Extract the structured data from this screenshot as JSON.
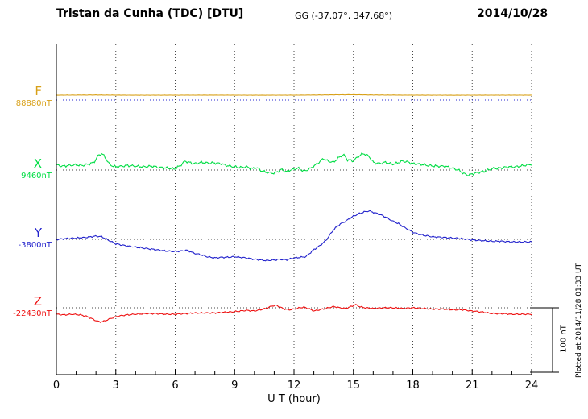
{
  "header": {
    "title": "Tristan da Cunha (TDC)  [DTU]",
    "coords": "GG (-37.07°, 347.68°)",
    "date": "2014/10/28"
  },
  "axis": {
    "xlabel": "U T (hour)"
  },
  "scale_bar": {
    "label": "100 nT",
    "nT": 100
  },
  "plotted_note": "Plotted at 2014/11/28 01:33 UT",
  "chart_data": {
    "type": "line",
    "title": "Tristan da Cunha (TDC) [DTU] magnetogram 2014/10/28",
    "xlabel": "U T (hour)",
    "x_range": [
      0,
      24
    ],
    "x_ticks": [
      0,
      3,
      6,
      9,
      12,
      15,
      18,
      21,
      24
    ],
    "scale_nT_per_div": 100,
    "grid": "vertical-dotted-every-3h",
    "series": [
      {
        "name": "F",
        "label": "F",
        "baseline_label": "88880nT",
        "baseline_nT": 88880,
        "color": "#d8a018",
        "baseline_color": "#2a2ad0",
        "points": [
          [
            0,
            7.5
          ],
          [
            2,
            7.8
          ],
          [
            4,
            7.4
          ],
          [
            6,
            7.5
          ],
          [
            8,
            7.6
          ],
          [
            10,
            7.4
          ],
          [
            12,
            7.5
          ],
          [
            14,
            8
          ],
          [
            15,
            8.2
          ],
          [
            16,
            7.8
          ],
          [
            18,
            7.5
          ],
          [
            20,
            7.4
          ],
          [
            22,
            7.5
          ],
          [
            24,
            7.5
          ]
        ]
      },
      {
        "name": "X",
        "label": "X",
        "baseline_label": "9460nT",
        "baseline_nT": 9460,
        "color": "#00dd44",
        "baseline_color": "#444444",
        "points": [
          [
            0,
            8
          ],
          [
            0.3,
            6
          ],
          [
            0.6,
            7
          ],
          [
            1,
            8
          ],
          [
            1.3,
            7
          ],
          [
            1.6,
            9
          ],
          [
            1.9,
            12
          ],
          [
            2.1,
            22
          ],
          [
            2.3,
            26
          ],
          [
            2.5,
            18
          ],
          [
            2.7,
            8
          ],
          [
            3,
            5
          ],
          [
            3.3,
            6
          ],
          [
            3.6,
            7
          ],
          [
            4,
            6
          ],
          [
            4.4,
            5
          ],
          [
            4.8,
            6
          ],
          [
            5.2,
            4
          ],
          [
            5.6,
            3
          ],
          [
            6,
            2
          ],
          [
            6.3,
            8
          ],
          [
            6.5,
            14
          ],
          [
            6.8,
            11
          ],
          [
            7,
            10
          ],
          [
            7.3,
            12
          ],
          [
            7.6,
            11
          ],
          [
            8,
            11
          ],
          [
            8.3,
            10
          ],
          [
            8.6,
            7
          ],
          [
            9,
            5
          ],
          [
            9.3,
            4
          ],
          [
            9.6,
            5
          ],
          [
            9.9,
            2
          ],
          [
            10.1,
            4
          ],
          [
            10.4,
            -2
          ],
          [
            10.7,
            -4
          ],
          [
            11,
            -5
          ],
          [
            11.2,
            -2
          ],
          [
            11.4,
            1
          ],
          [
            11.6,
            -3
          ],
          [
            11.8,
            0
          ],
          [
            12,
            1
          ],
          [
            12.2,
            3
          ],
          [
            12.5,
            -2
          ],
          [
            12.8,
            2
          ],
          [
            13,
            6
          ],
          [
            13.3,
            13
          ],
          [
            13.5,
            18
          ],
          [
            13.7,
            14
          ],
          [
            14,
            12
          ],
          [
            14.2,
            18
          ],
          [
            14.5,
            24
          ],
          [
            14.7,
            16
          ],
          [
            15,
            14
          ],
          [
            15.2,
            20
          ],
          [
            15.5,
            26
          ],
          [
            15.8,
            21
          ],
          [
            16,
            12
          ],
          [
            16.3,
            10
          ],
          [
            16.6,
            12
          ],
          [
            17,
            9
          ],
          [
            17.3,
            12
          ],
          [
            17.5,
            14
          ],
          [
            17.8,
            12
          ],
          [
            18,
            10
          ],
          [
            18.4,
            9
          ],
          [
            18.8,
            7
          ],
          [
            19.2,
            6
          ],
          [
            19.6,
            6
          ],
          [
            20,
            3
          ],
          [
            20.3,
            0
          ],
          [
            20.6,
            -6
          ],
          [
            20.8,
            -8
          ],
          [
            21,
            -6
          ],
          [
            21.3,
            -4
          ],
          [
            21.6,
            -2
          ],
          [
            22,
            2
          ],
          [
            22.4,
            3
          ],
          [
            22.8,
            5
          ],
          [
            23.2,
            5
          ],
          [
            23.6,
            7
          ],
          [
            24,
            9
          ]
        ]
      },
      {
        "name": "Y",
        "label": "Y",
        "baseline_label": "-3800nT",
        "baseline_nT": -3800,
        "color": "#2222cc",
        "baseline_color": "#444444",
        "points": [
          [
            0,
            0
          ],
          [
            0.5,
            1
          ],
          [
            1,
            2
          ],
          [
            1.5,
            3
          ],
          [
            2,
            5
          ],
          [
            2.3,
            4
          ],
          [
            2.6,
            -1
          ],
          [
            3,
            -7
          ],
          [
            3.5,
            -10
          ],
          [
            4,
            -12
          ],
          [
            4.5,
            -14
          ],
          [
            5,
            -16
          ],
          [
            5.5,
            -18
          ],
          [
            6,
            -19
          ],
          [
            6.3,
            -18
          ],
          [
            6.6,
            -17
          ],
          [
            7,
            -22
          ],
          [
            7.3,
            -24
          ],
          [
            7.6,
            -27
          ],
          [
            8,
            -29
          ],
          [
            8.3,
            -28
          ],
          [
            8.6,
            -28
          ],
          [
            9,
            -27
          ],
          [
            9.3,
            -28
          ],
          [
            9.6,
            -29
          ],
          [
            10,
            -31
          ],
          [
            10.3,
            -32
          ],
          [
            10.6,
            -33
          ],
          [
            11,
            -32
          ],
          [
            11.3,
            -31
          ],
          [
            11.6,
            -32
          ],
          [
            12,
            -29
          ],
          [
            12.3,
            -28
          ],
          [
            12.6,
            -27
          ],
          [
            13,
            -16
          ],
          [
            13.3,
            -10
          ],
          [
            13.6,
            -2
          ],
          [
            14,
            15
          ],
          [
            14.3,
            23
          ],
          [
            14.6,
            28
          ],
          [
            15,
            36
          ],
          [
            15.3,
            40
          ],
          [
            15.6,
            43
          ],
          [
            15.8,
            44
          ],
          [
            16,
            42
          ],
          [
            16.3,
            39
          ],
          [
            16.6,
            35
          ],
          [
            17,
            28
          ],
          [
            17.3,
            24
          ],
          [
            17.6,
            18
          ],
          [
            18,
            11
          ],
          [
            18.3,
            8
          ],
          [
            18.6,
            6
          ],
          [
            19,
            4
          ],
          [
            19.5,
            3
          ],
          [
            20,
            2
          ],
          [
            20.5,
            1
          ],
          [
            21,
            -1
          ],
          [
            21.5,
            -2
          ],
          [
            22,
            -3
          ],
          [
            22.5,
            -3
          ],
          [
            23,
            -4
          ],
          [
            23.5,
            -4
          ],
          [
            24,
            -4
          ]
        ]
      },
      {
        "name": "Z",
        "label": "Z",
        "baseline_label": "-22430nT",
        "baseline_nT": -22430,
        "color": "#ee1111",
        "baseline_color": "#444444",
        "points": [
          [
            0,
            -10
          ],
          [
            0.4,
            -11
          ],
          [
            0.8,
            -10
          ],
          [
            1.2,
            -11
          ],
          [
            1.5,
            -13
          ],
          [
            1.8,
            -17
          ],
          [
            2,
            -20
          ],
          [
            2.2,
            -22
          ],
          [
            2.4,
            -21
          ],
          [
            2.7,
            -17
          ],
          [
            3,
            -14
          ],
          [
            3.3,
            -12
          ],
          [
            3.6,
            -11
          ],
          [
            4,
            -10
          ],
          [
            4.5,
            -9
          ],
          [
            5,
            -9
          ],
          [
            5.5,
            -10
          ],
          [
            6,
            -10
          ],
          [
            6.5,
            -9
          ],
          [
            7,
            -8
          ],
          [
            7.5,
            -8
          ],
          [
            8,
            -8
          ],
          [
            8.5,
            -7
          ],
          [
            9,
            -6
          ],
          [
            9.3,
            -5
          ],
          [
            9.6,
            -4
          ],
          [
            10,
            -5
          ],
          [
            10.3,
            -3
          ],
          [
            10.6,
            -1
          ],
          [
            10.9,
            3
          ],
          [
            11.1,
            4
          ],
          [
            11.3,
            1
          ],
          [
            11.5,
            -2
          ],
          [
            11.8,
            -3
          ],
          [
            12,
            -2
          ],
          [
            12.3,
            0
          ],
          [
            12.5,
            1
          ],
          [
            12.8,
            -2
          ],
          [
            13,
            -5
          ],
          [
            13.3,
            -3
          ],
          [
            13.6,
            -1
          ],
          [
            14,
            2
          ],
          [
            14.3,
            0
          ],
          [
            14.6,
            -1
          ],
          [
            14.9,
            2
          ],
          [
            15.1,
            5
          ],
          [
            15.3,
            2
          ],
          [
            15.6,
            0
          ],
          [
            16,
            -1
          ],
          [
            16.5,
            0
          ],
          [
            17,
            0
          ],
          [
            17.5,
            -1
          ],
          [
            18,
            0
          ],
          [
            18.5,
            -1
          ],
          [
            19,
            -2
          ],
          [
            19.5,
            -2
          ],
          [
            20,
            -3
          ],
          [
            20.5,
            -3
          ],
          [
            21,
            -5
          ],
          [
            21.3,
            -6
          ],
          [
            21.6,
            -7
          ],
          [
            22,
            -9
          ],
          [
            22.5,
            -9
          ],
          [
            23,
            -10
          ],
          [
            23.5,
            -10
          ],
          [
            24,
            -10
          ]
        ]
      }
    ]
  }
}
